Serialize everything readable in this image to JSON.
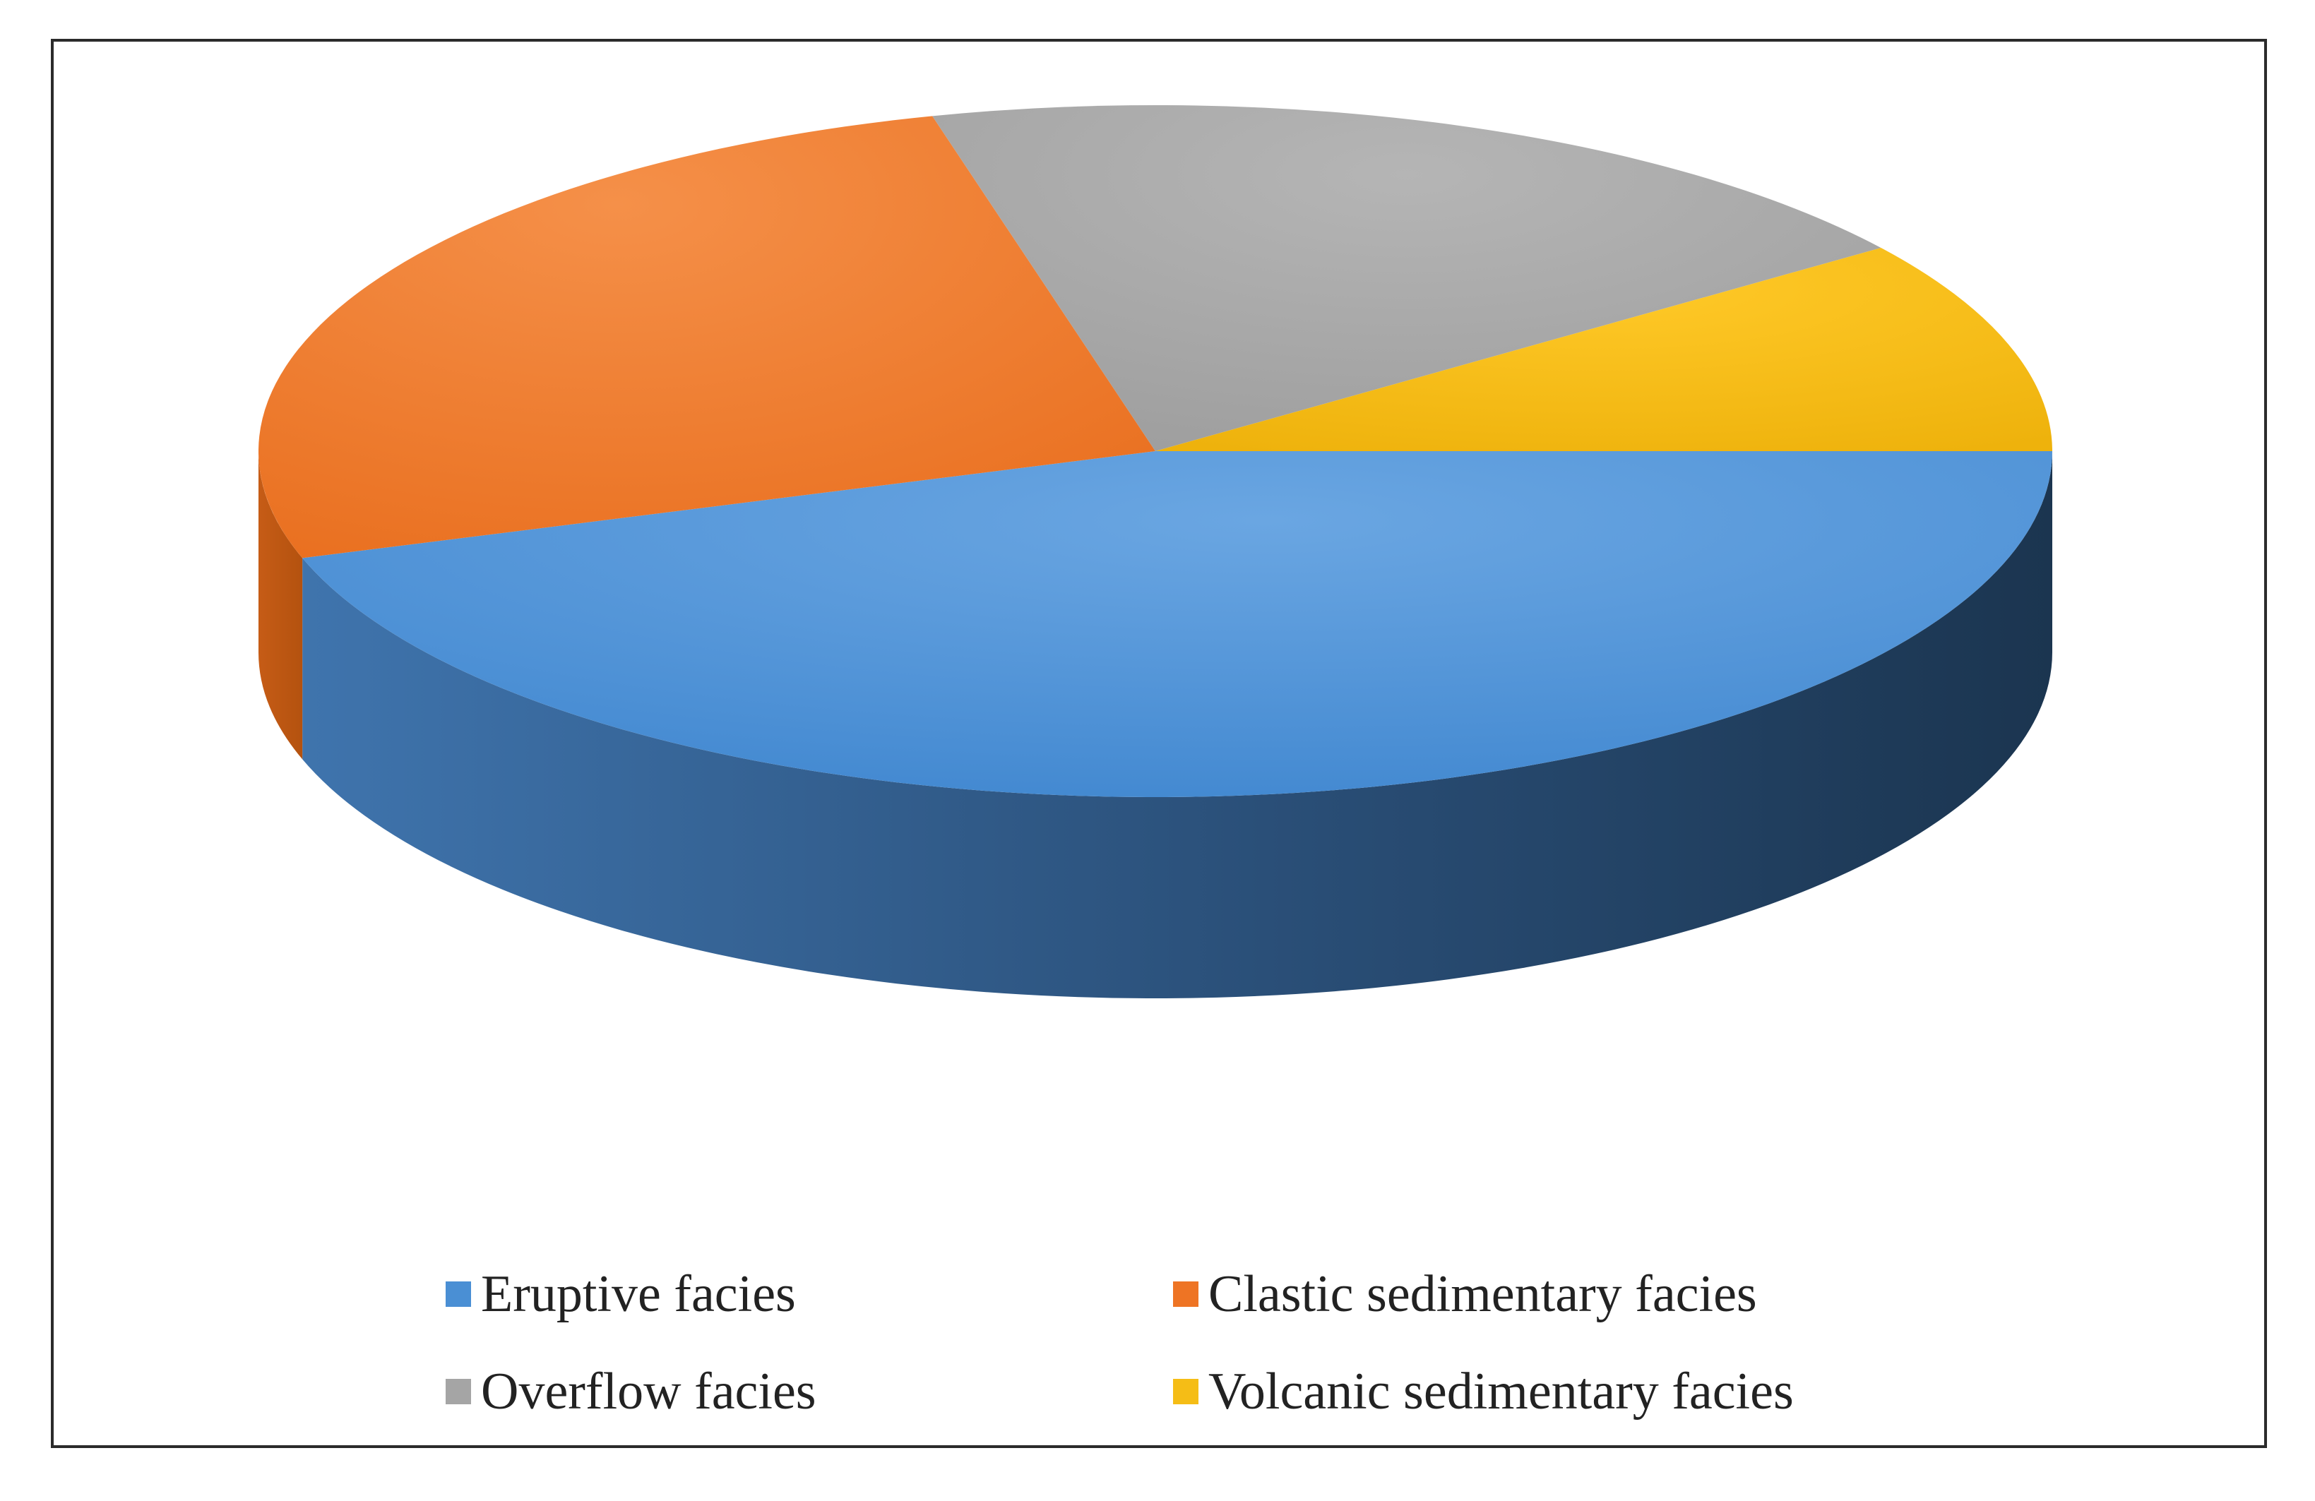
{
  "chart_data": {
    "type": "pie",
    "style": "3d",
    "title": "",
    "categories": [
      "Eruptive facies",
      "Clastic sedimentary facies",
      "Overflow facies",
      "Volcanic sedimentary facies"
    ],
    "values": [
      45,
      26,
      19,
      10
    ],
    "value_unit": "percent",
    "colors": [
      "#4a8fd4",
      "#ee7424",
      "#a5a5a5",
      "#f5bd16"
    ],
    "legend": {
      "placement": "bottom",
      "columns": 2,
      "entries": [
        {
          "label": "Eruptive facies",
          "color": "#4a8fd4"
        },
        {
          "label": "Clastic sedimentary facies",
          "color": "#ee7424"
        },
        {
          "label": "Overflow facies",
          "color": "#a5a5a5"
        },
        {
          "label": "Volcanic sedimentary facies",
          "color": "#f5bd16"
        }
      ]
    }
  }
}
